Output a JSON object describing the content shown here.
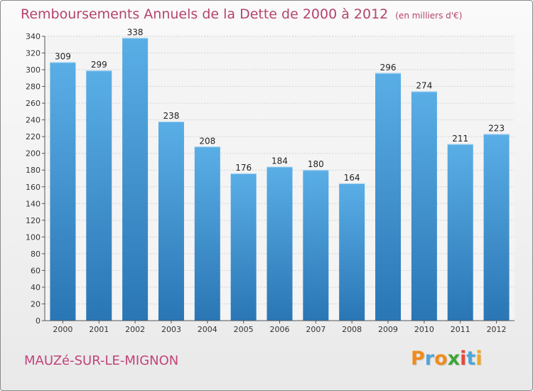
{
  "chart_data": {
    "type": "bar",
    "title": "Remboursements Annuels de la Dette de 2000 à 2012",
    "unit": "(en milliers d'€)",
    "categories": [
      "2000",
      "2001",
      "2002",
      "2003",
      "2004",
      "2005",
      "2006",
      "2007",
      "2008",
      "2009",
      "2010",
      "2011",
      "2012"
    ],
    "values": [
      309,
      299,
      338,
      238,
      208,
      176,
      184,
      180,
      164,
      296,
      274,
      211,
      223
    ],
    "xlabel": "",
    "ylabel": "",
    "ylim": [
      0,
      340
    ],
    "ytick_step": 20,
    "grid": true,
    "legend": "none",
    "bar_color_top": "#5aaee6",
    "bar_color_bottom": "#2a76b5"
  },
  "footer": {
    "city": "MAUZé-SUR-LE-MIGNON",
    "brand": {
      "letters": [
        "P",
        "r",
        "o",
        "x",
        "i",
        "t",
        "i"
      ],
      "colors": [
        "#f08c1e",
        "#4da6d9",
        "#f08c1e",
        "#3fa535",
        "#e8483b",
        "#4da6d9",
        "#f0a81e"
      ]
    }
  }
}
